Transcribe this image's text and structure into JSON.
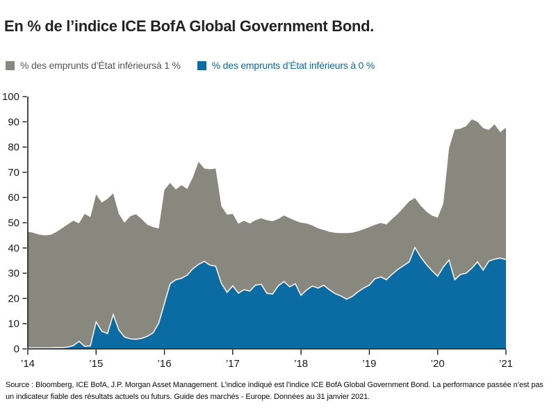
{
  "title": "En % de l’indice ICE BofA Global Government Bond.",
  "legend": {
    "items": [
      {
        "label": "% des emprunts d’État inférieursà 1 %",
        "text_color": "#55565a"
      },
      {
        "label": "% des emprunts d’État inférieurs à 0 %",
        "text_color": "#0b6ba3"
      }
    ]
  },
  "footer": {
    "text": "Source : Bloomberg, ICE BofA, J.P. Morgan Asset Management. L’indice indiqué est l’indice ICE BofA Global Government Bond. La performance passée n’est pas un indicateur fiable des résultats actuels ou futurs. Guide des marchés - Europe. Données au 31 janvier 2021."
  },
  "chart_data": {
    "type": "area",
    "title": "En % de l’indice ICE BofA Global Government Bond.",
    "x_interval": "monthly",
    "x_start": "2014-01",
    "x_end": "2021-01",
    "x_tick_labels": [
      "’14",
      "’15",
      "’16",
      "’17",
      "’18",
      "’19",
      "’20",
      "’21"
    ],
    "y_ticks": [
      0,
      10,
      20,
      30,
      40,
      50,
      60,
      70,
      80,
      90,
      100
    ],
    "ylim": [
      0,
      100
    ],
    "grid": false,
    "legend_position": "top-left",
    "boundary_stroke_color": "#f4f3ee",
    "axis_color": "#1a1a1a",
    "series": [
      {
        "name": "% des emprunts d’État inférieursà 1 %",
        "color": "#89887E",
        "values": [
          46.5,
          46,
          45.3,
          45,
          45.2,
          46.3,
          47.8,
          49.3,
          50.8,
          49.8,
          53.5,
          52.2,
          61.2,
          58,
          59.5,
          61.6,
          53.5,
          50,
          52.6,
          53.4,
          51.5,
          49.2,
          48.3,
          47.7,
          63,
          65.8,
          63.2,
          64.9,
          63.4,
          68,
          74.2,
          71.5,
          71.2,
          71.5,
          56.5,
          53.2,
          53.5,
          49.6,
          50.8,
          49.7,
          51,
          51.8,
          51,
          50.6,
          51.5,
          52.9,
          51.8,
          50.8,
          50,
          49.7,
          48.9,
          47.8,
          47.1,
          46.4,
          46,
          45.9,
          45.9,
          46.1,
          46.6,
          47.4,
          48.3,
          49.2,
          49.9,
          49.3,
          51.5,
          53.5,
          56,
          58.5,
          59.8,
          56.8,
          54.5,
          52.8,
          52,
          57.6,
          79.5,
          87,
          87.3,
          88.3,
          91,
          90,
          87.5,
          86.8,
          89,
          85.9,
          87.7
        ]
      },
      {
        "name": "% des emprunts d’État inférieurs à 0 %",
        "color": "#0B6BA3",
        "values": [
          0.4,
          0.4,
          0.4,
          0.4,
          0.4,
          0.5,
          0.5,
          0.7,
          1.3,
          3,
          1,
          1.2,
          10.7,
          7,
          6.1,
          13.6,
          7.5,
          4.7,
          4,
          3.8,
          4.2,
          5,
          6.3,
          10.2,
          18,
          25.8,
          27.4,
          28,
          29.2,
          31.8,
          33.5,
          34.7,
          33.2,
          32.8,
          26,
          22.4,
          25,
          22.1,
          23.5,
          22.9,
          25.3,
          25.6,
          22,
          21.7,
          25,
          26.7,
          24.6,
          25.8,
          21.2,
          23.4,
          24.9,
          24.1,
          25.2,
          23.4,
          21.9,
          21,
          19.7,
          20.8,
          22.6,
          24.1,
          25.3,
          27.8,
          28.5,
          27.4,
          29.6,
          31.5,
          33,
          34.5,
          40.2,
          36.5,
          33.5,
          31,
          28.8,
          32.5,
          35.2,
          27.4,
          29.5,
          30,
          32,
          34.5,
          31.2,
          34.8,
          35.6,
          36,
          35.4
        ]
      }
    ]
  }
}
